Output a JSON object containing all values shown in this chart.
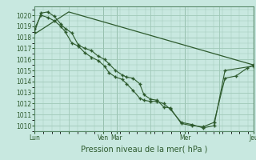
{
  "bg_color": "#c8e8e0",
  "grid_color": "#a0c8b8",
  "line_color": "#2d5a2d",
  "marker_color": "#2d5a2d",
  "title": "Pression niveau de la mer( hPa )",
  "ylim": [
    1009.5,
    1020.8
  ],
  "yticks": [
    1010,
    1011,
    1012,
    1013,
    1014,
    1015,
    1016,
    1017,
    1018,
    1019,
    1020
  ],
  "xtick_labels": [
    "Lun",
    "",
    "Ven",
    "Mar",
    "",
    "Mer",
    "",
    "Jeu"
  ],
  "xtick_positions": [
    0.0,
    0.156,
    0.312,
    0.375,
    0.531,
    0.688,
    0.844,
    1.0
  ],
  "xlim": [
    0.0,
    1.0
  ],
  "series1_x": [
    0.0,
    0.03,
    0.06,
    0.09,
    0.12,
    0.14,
    0.17,
    0.2,
    0.23,
    0.26,
    0.29,
    0.32,
    0.34,
    0.37,
    0.4,
    0.42,
    0.45,
    0.48,
    0.5,
    0.53,
    0.56,
    0.59,
    0.62,
    0.67,
    0.72,
    0.77,
    0.82,
    0.87,
    0.92,
    0.97,
    1.0
  ],
  "series1_y": [
    1018.5,
    1020.2,
    1020.3,
    1019.9,
    1019.2,
    1018.8,
    1018.4,
    1017.3,
    1017.0,
    1016.8,
    1016.3,
    1016.0,
    1015.6,
    1015.0,
    1014.6,
    1014.4,
    1014.3,
    1013.8,
    1012.8,
    1012.4,
    1012.3,
    1011.7,
    1011.6,
    1010.2,
    1010.0,
    1009.9,
    1010.3,
    1014.3,
    1014.5,
    1015.2,
    1015.5
  ],
  "series2_x": [
    0.0,
    0.03,
    0.06,
    0.09,
    0.12,
    0.14,
    0.17,
    0.2,
    0.23,
    0.26,
    0.29,
    0.32,
    0.34,
    0.37,
    0.4,
    0.42,
    0.45,
    0.48,
    0.5,
    0.53,
    0.56,
    0.59,
    0.62,
    0.67,
    0.72,
    0.77,
    0.82,
    0.87,
    1.0
  ],
  "series2_y": [
    1018.8,
    1020.0,
    1019.8,
    1019.5,
    1019.0,
    1018.5,
    1017.5,
    1017.2,
    1016.6,
    1016.2,
    1015.9,
    1015.4,
    1014.8,
    1014.4,
    1014.2,
    1013.8,
    1013.2,
    1012.5,
    1012.3,
    1012.2,
    1012.2,
    1012.0,
    1011.5,
    1010.3,
    1010.1,
    1009.8,
    1010.0,
    1015.0,
    1015.4
  ],
  "series3_x": [
    0.0,
    0.156,
    1.0
  ],
  "series3_y": [
    1018.3,
    1020.3,
    1015.5
  ]
}
